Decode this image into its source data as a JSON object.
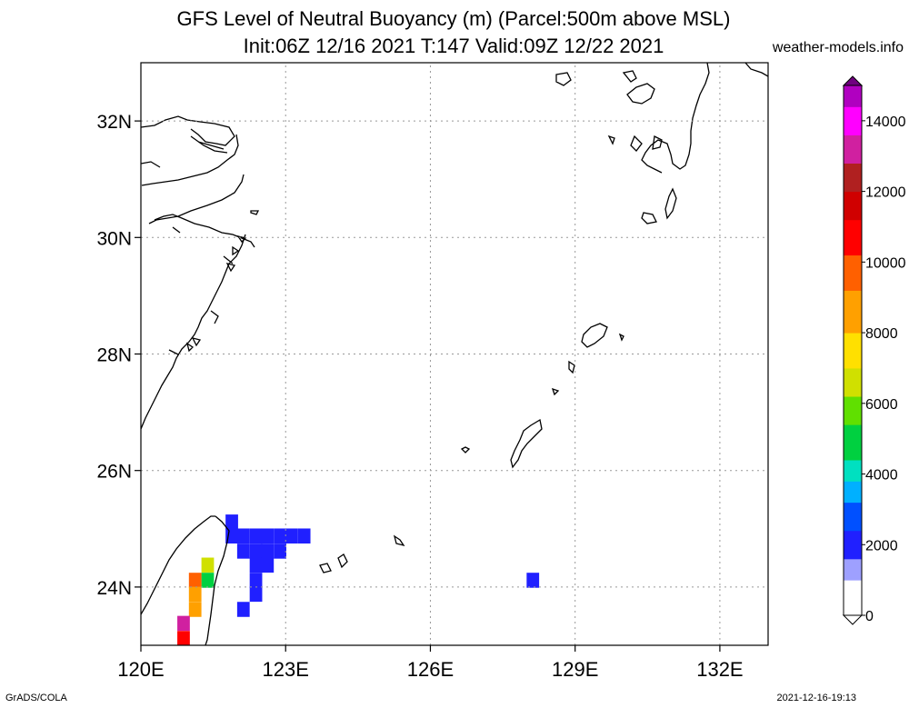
{
  "title": {
    "line1": "GFS Level of Neutral Buoyancy (m) (Parcel:500m above MSL)",
    "line2": "Init:06Z 12/16 2021 T:147 Valid:09Z 12/22 2021"
  },
  "credit": "weather-models.info",
  "footer": {
    "left": "GrADS/COLA",
    "right": "2021-12-16-19:13"
  },
  "map": {
    "lon_range": [
      120,
      133
    ],
    "lat_range": [
      23,
      33
    ],
    "grid": true,
    "x_ticks": [
      {
        "lon": 120,
        "label": "120E"
      },
      {
        "lon": 123,
        "label": "123E"
      },
      {
        "lon": 126,
        "label": "126E"
      },
      {
        "lon": 129,
        "label": "129E"
      },
      {
        "lon": 132,
        "label": "132E"
      }
    ],
    "y_ticks": [
      {
        "lat": 24,
        "label": "24N"
      },
      {
        "lat": 26,
        "label": "26N"
      },
      {
        "lat": 28,
        "label": "28N"
      },
      {
        "lat": 30,
        "label": "30N"
      },
      {
        "lat": 32,
        "label": "32N"
      }
    ],
    "colorbar": {
      "range": [
        0,
        15000
      ],
      "labels": [
        {
          "value": 0,
          "label": "0"
        },
        {
          "value": 2000,
          "label": "2000"
        },
        {
          "value": 4000,
          "label": "4000"
        },
        {
          "value": 6000,
          "label": "6000"
        },
        {
          "value": 8000,
          "label": "8000"
        },
        {
          "value": 10000,
          "label": "10000"
        },
        {
          "value": 12000,
          "label": "12000"
        },
        {
          "value": 14000,
          "label": "14000"
        }
      ],
      "stops": [
        {
          "value": 0,
          "color": "#ffffff"
        },
        {
          "value": 1000,
          "color": "#9ea0ff"
        },
        {
          "value": 1600,
          "color": "#2020ff"
        },
        {
          "value": 2400,
          "color": "#0050ff"
        },
        {
          "value": 3200,
          "color": "#00b0ff"
        },
        {
          "value": 3800,
          "color": "#00e0c0"
        },
        {
          "value": 4400,
          "color": "#00d040"
        },
        {
          "value": 5400,
          "color": "#60e000"
        },
        {
          "value": 6200,
          "color": "#d0e000"
        },
        {
          "value": 7000,
          "color": "#ffe000"
        },
        {
          "value": 8000,
          "color": "#ffa000"
        },
        {
          "value": 9200,
          "color": "#ff6000"
        },
        {
          "value": 10200,
          "color": "#ff0000"
        },
        {
          "value": 11200,
          "color": "#d00000"
        },
        {
          "value": 12000,
          "color": "#b02020"
        },
        {
          "value": 12800,
          "color": "#d020a0"
        },
        {
          "value": 13600,
          "color": "#ff00ff"
        },
        {
          "value": 14400,
          "color": "#b000c0"
        },
        {
          "value": 15000,
          "color": "#700080"
        }
      ]
    },
    "cells": [
      {
        "lon": 121.88,
        "lat": 25.12,
        "value": 1700
      },
      {
        "lon": 122.12,
        "lat": 24.88,
        "value": 1700
      },
      {
        "lon": 122.38,
        "lat": 24.88,
        "value": 1700
      },
      {
        "lon": 122.62,
        "lat": 24.88,
        "value": 1700
      },
      {
        "lon": 122.88,
        "lat": 24.88,
        "value": 1700
      },
      {
        "lon": 123.12,
        "lat": 24.88,
        "value": 1700
      },
      {
        "lon": 123.38,
        "lat": 24.88,
        "value": 1700
      },
      {
        "lon": 121.88,
        "lat": 24.88,
        "value": 1700
      },
      {
        "lon": 122.12,
        "lat": 24.62,
        "value": 1700
      },
      {
        "lon": 122.38,
        "lat": 24.62,
        "value": 1800
      },
      {
        "lon": 122.62,
        "lat": 24.62,
        "value": 1700
      },
      {
        "lon": 122.88,
        "lat": 24.62,
        "value": 1700
      },
      {
        "lon": 122.38,
        "lat": 24.38,
        "value": 1800
      },
      {
        "lon": 122.62,
        "lat": 24.38,
        "value": 1700
      },
      {
        "lon": 122.38,
        "lat": 24.12,
        "value": 1700
      },
      {
        "lon": 122.38,
        "lat": 23.88,
        "value": 1700
      },
      {
        "lon": 122.12,
        "lat": 23.62,
        "value": 1700
      },
      {
        "lon": 128.12,
        "lat": 24.12,
        "value": 1700
      },
      {
        "lon": 121.38,
        "lat": 24.38,
        "value": 6200
      },
      {
        "lon": 121.38,
        "lat": 24.12,
        "value": 5000
      },
      {
        "lon": 121.12,
        "lat": 24.12,
        "value": 9800
      },
      {
        "lon": 121.12,
        "lat": 23.88,
        "value": 8500
      },
      {
        "lon": 121.12,
        "lat": 23.62,
        "value": 8000
      },
      {
        "lon": 120.88,
        "lat": 23.38,
        "value": 13200
      },
      {
        "lon": 120.88,
        "lat": 23.12,
        "value": 10500
      }
    ]
  }
}
